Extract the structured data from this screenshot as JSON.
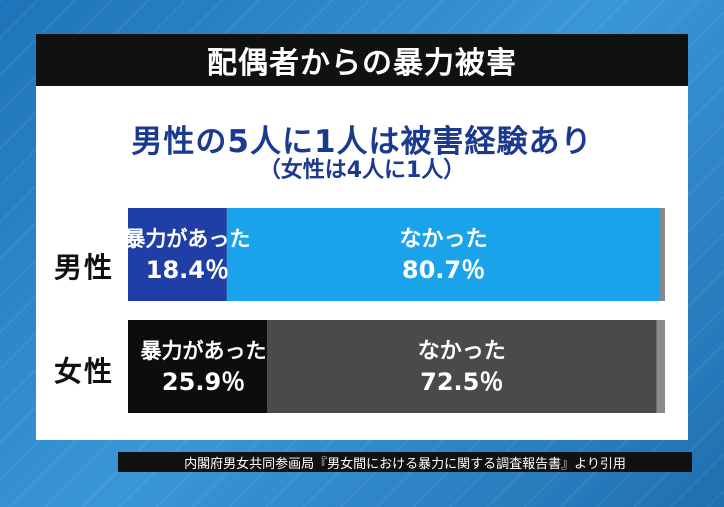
{
  "title": "配偶者からの暴力被害",
  "headline": "男性の5人に1人は被害経験あり",
  "subheadline": "（女性は4人に1人）",
  "source": "内閣府男女共同参画局『男女間における暴力に関する調査報告書』より引用",
  "colors": {
    "male_yes": "#1f3fa6",
    "male_no": "#1aa3ea",
    "female_yes": "#0d0d0d",
    "female_no": "#4a4a4a",
    "remainder": "#8a8a8a"
  },
  "chart_data": {
    "type": "bar",
    "orientation": "horizontal-stacked-100",
    "categories": [
      "男性",
      "女性"
    ],
    "series": [
      {
        "name": "暴力があった",
        "values": [
          18.4,
          25.9
        ],
        "labels": [
          "18.4％",
          "25.9％"
        ]
      },
      {
        "name": "なかった",
        "values": [
          80.7,
          72.5
        ],
        "labels": [
          "80.7％",
          "72.5％"
        ]
      }
    ],
    "xlim": [
      0,
      100
    ]
  }
}
